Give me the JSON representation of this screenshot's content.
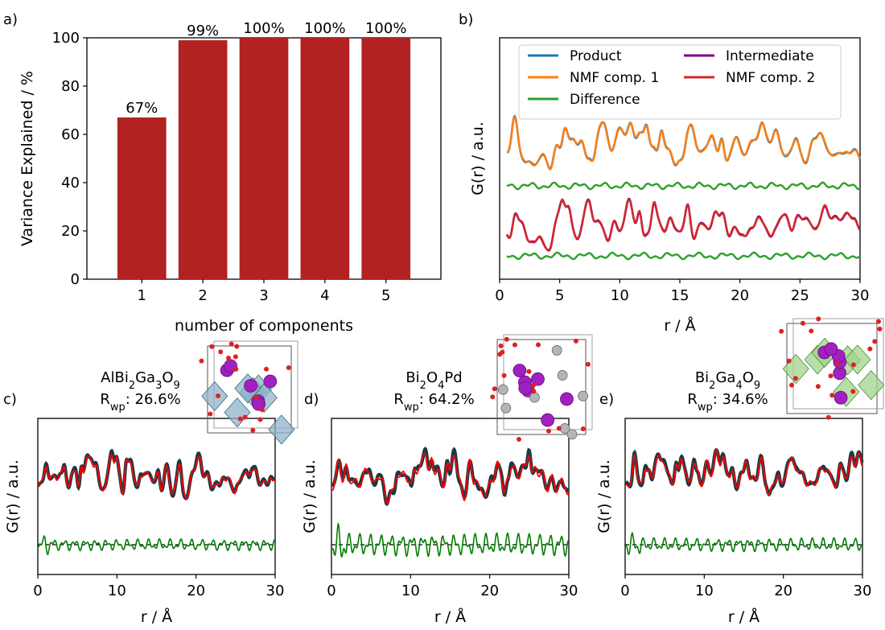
{
  "panels": {
    "a": {
      "label": "a)"
    },
    "b": {
      "label": "b)"
    },
    "c": {
      "label": "c)"
    },
    "d": {
      "label": "d)"
    },
    "e": {
      "label": "e)"
    }
  },
  "chart_data": [
    {
      "id": "a",
      "type": "bar",
      "xlabel": "number of components",
      "ylabel": "Variance Explained / %",
      "categories": [
        "1",
        "2",
        "3",
        "4",
        "5"
      ],
      "values": [
        67,
        99,
        100,
        100,
        100
      ],
      "data_labels": [
        "67%",
        "99%",
        "100%",
        "100%",
        "100%"
      ],
      "yticks": [
        0,
        20,
        40,
        60,
        80,
        100
      ],
      "ylim": [
        0,
        100
      ],
      "bar_color": "#b22222",
      "grid": false
    },
    {
      "id": "b",
      "type": "line",
      "xlabel": "r / Å",
      "ylabel": "G(r) / a.u.",
      "xlim": [
        0,
        30
      ],
      "xticks": [
        0,
        5,
        10,
        15,
        20,
        25,
        30
      ],
      "legend_position": "top",
      "series": [
        {
          "name": "Product",
          "color": "#1f77b4"
        },
        {
          "name": "NMF comp. 1",
          "color": "#ff7f0e"
        },
        {
          "name": "Difference",
          "color": "#2ca02c"
        },
        {
          "name": "Intermediate",
          "color": "#800080"
        },
        {
          "name": "NMF comp. 2",
          "color": "#d62728"
        }
      ]
    },
    {
      "id": "c",
      "type": "line",
      "title_html": "AlBi<tspan baseline-shift=\"sub\" font-size=\"13\">2</tspan>Ga<tspan baseline-shift=\"sub\" font-size=\"13\">3</tspan>O<tspan baseline-shift=\"sub\" font-size=\"13\">9</tspan>",
      "rwp_label": "R",
      "rwp_sub": "wp",
      "rwp_value": ": 26.6%",
      "xlabel": "r / Å",
      "ylabel": "G(r) / a.u.",
      "xlim": [
        0,
        30
      ],
      "xticks": [
        0,
        10,
        20,
        30
      ],
      "observed_color": "#1b3a44",
      "fit_color": "#ff0000",
      "difference_color": "#008000"
    },
    {
      "id": "d",
      "type": "line",
      "title_html": "Bi<tspan baseline-shift=\"sub\" font-size=\"13\">2</tspan>O<tspan baseline-shift=\"sub\" font-size=\"13\">4</tspan>Pd",
      "rwp_label": "R",
      "rwp_sub": "wp",
      "rwp_value": ": 64.2%",
      "xlabel": "r / Å",
      "ylabel": "G(r) / a.u.",
      "xlim": [
        0,
        30
      ],
      "xticks": [
        0,
        10,
        20,
        30
      ],
      "observed_color": "#1b3a44",
      "fit_color": "#ff0000",
      "difference_color": "#008000"
    },
    {
      "id": "e",
      "type": "line",
      "title_html": "Bi<tspan baseline-shift=\"sub\" font-size=\"13\">2</tspan>Ga<tspan baseline-shift=\"sub\" font-size=\"13\">4</tspan>O<tspan baseline-shift=\"sub\" font-size=\"13\">9</tspan>",
      "rwp_label": "R",
      "rwp_sub": "wp",
      "rwp_value": ": 34.6%",
      "xlabel": "r / Å",
      "ylabel": "G(r) / a.u.",
      "xlim": [
        0,
        30
      ],
      "xticks": [
        0,
        10,
        20,
        30
      ],
      "observed_color": "#1b3a44",
      "fit_color": "#ff0000",
      "difference_color": "#008000"
    }
  ]
}
